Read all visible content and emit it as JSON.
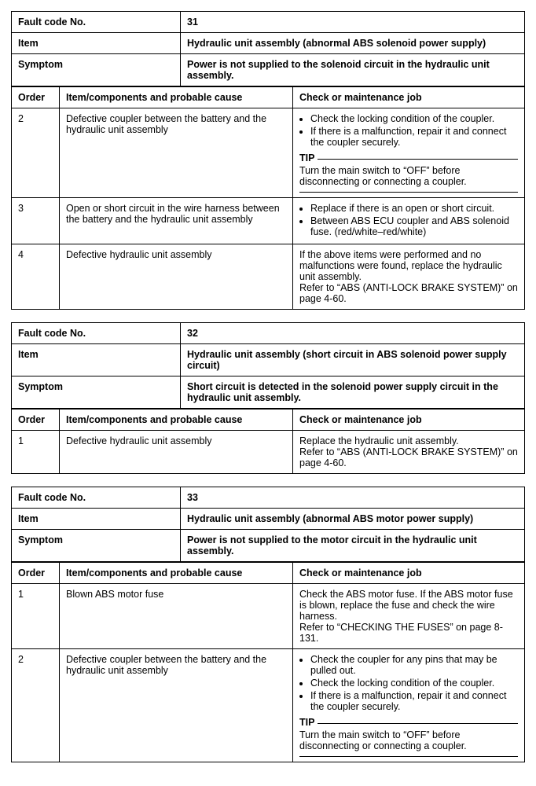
{
  "labels": {
    "fault_code": "Fault code No.",
    "item": "Item",
    "symptom": "Symptom",
    "order": "Order",
    "cause": "Item/components and probable cause",
    "job": "Check or maintenance job",
    "tip": "TIP"
  },
  "blocks": [
    {
      "code": "31",
      "item": "Hydraulic unit assembly (abnormal ABS solenoid power supply)",
      "symptom": "Power is not supplied to the solenoid circuit in the hydraulic unit assembly.",
      "rows": [
        {
          "order": "2",
          "cause": "Defective coupler between the battery and the hydraulic unit assembly",
          "bullets": [
            "Check the locking condition of the coupler.",
            "If there is a malfunction, repair it and connect the coupler securely."
          ],
          "tip": "Turn the main switch to “OFF” before disconnecting or connecting a coupler."
        },
        {
          "order": "3",
          "cause": "Open or short circuit in the wire harness between the battery and the hydraulic unit assembly",
          "bullets": [
            "Replace if there is an open or short circuit.",
            "Between ABS ECU coupler and ABS solenoid fuse. (red/white–red/white)"
          ]
        },
        {
          "order": "4",
          "cause": "Defective hydraulic unit assembly",
          "text": "If the above items were performed and no malfunctions were found, replace the hydraulic unit assembly.\nRefer to “ABS (ANTI-LOCK BRAKE SYSTEM)” on page 4-60."
        }
      ]
    },
    {
      "code": "32",
      "item": "Hydraulic unit assembly (short circuit in ABS solenoid power supply circuit)",
      "symptom": "Short circuit is detected in the solenoid power supply circuit in the hydraulic unit assembly.",
      "rows": [
        {
          "order": "1",
          "cause": "Defective hydraulic unit assembly",
          "text": "Replace the hydraulic unit assembly.\nRefer to “ABS (ANTI-LOCK BRAKE SYSTEM)” on page 4-60."
        }
      ]
    },
    {
      "code": "33",
      "item": "Hydraulic unit assembly (abnormal ABS motor power supply)",
      "symptom": "Power is not supplied to the motor circuit in the hydraulic unit assembly.",
      "rows": [
        {
          "order": "1",
          "cause": "Blown ABS motor fuse",
          "text": "Check the ABS motor fuse. If the ABS motor fuse is blown, replace the fuse and check the wire harness.\nRefer to “CHECKING THE FUSES” on page 8-131."
        },
        {
          "order": "2",
          "cause": "Defective coupler between the battery and the hydraulic unit assembly",
          "bullets": [
            "Check the coupler for any pins that may be pulled out.",
            "Check the locking condition of the coupler.",
            "If there is a malfunction, repair it and connect the coupler securely."
          ],
          "tip": "Turn the main switch to “OFF” before disconnecting or connecting a coupler."
        }
      ]
    }
  ]
}
